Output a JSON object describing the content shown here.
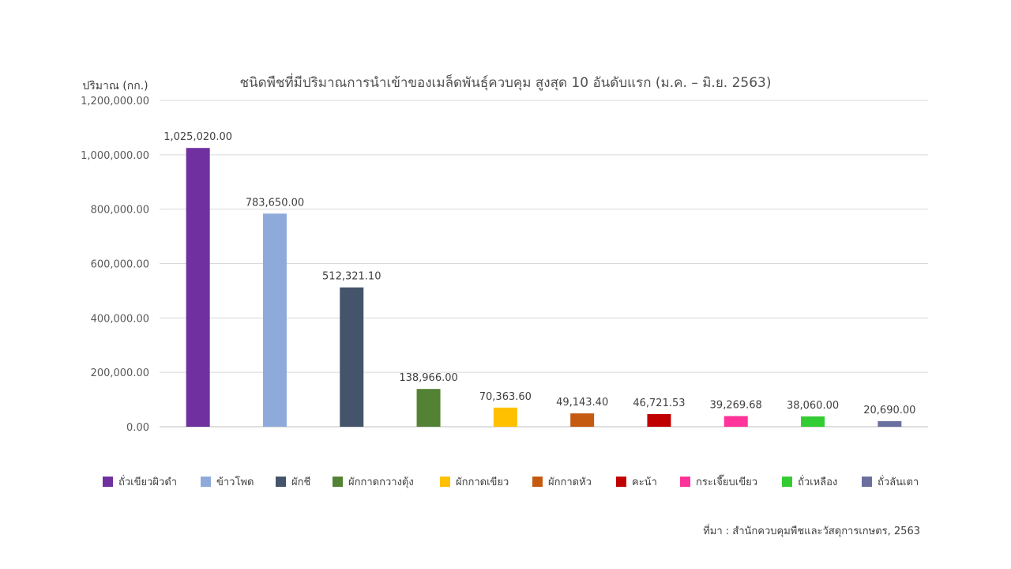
{
  "chart_data": {
    "type": "bar",
    "title": "ชนิดพืชที่มีปริมาณการนำเข้าของเมล็ดพันธุ์ควบคุม สูงสุด 10 อันดับแรก (ม.ค. – มิ.ย. 2563)",
    "ylabel": "ปริมาณ (กก.)",
    "xlabel": "",
    "ylim": [
      0,
      1200000
    ],
    "yticks": [
      "0.00",
      "200,000.00",
      "400,000.00",
      "600,000.00",
      "800,000.00",
      "1,000,000.00",
      "1,200,000.00"
    ],
    "ytick_values": [
      0,
      200000,
      400000,
      600000,
      800000,
      1000000,
      1200000
    ],
    "grid": true,
    "legend_position": "bottom",
    "categories": [
      "ถั่วเขียวผิวดำ",
      "ข้าวโพด",
      "ผักชี",
      "ผักกาดกวางตุ้ง",
      "ผักกาดเขียว",
      "ผักกาดหัว",
      "คะน้า",
      "กระเจี๊ยบเขียว",
      "ถั่วเหลือง",
      "ถั่วลันเตา"
    ],
    "values": [
      1025020.0,
      783650.0,
      512321.1,
      138966.0,
      70363.6,
      49143.4,
      46721.53,
      39269.68,
      38060.0,
      20690.0
    ],
    "data_labels": [
      "1,025,020.00",
      "783,650.00",
      "512,321.10",
      "138,966.00",
      "70,363.60",
      "49,143.40",
      "46,721.53",
      "39,269.68",
      "38,060.00",
      "20,690.00"
    ],
    "colors": [
      "#7030a0",
      "#8eaadb",
      "#44546a",
      "#548235",
      "#ffc000",
      "#c55a11",
      "#c00000",
      "#ff3399",
      "#33cc33",
      "#6a6fa0"
    ]
  },
  "source": "ที่มา : สำนักควบคุมพืชและวัสดุการเกษตร, 2563"
}
